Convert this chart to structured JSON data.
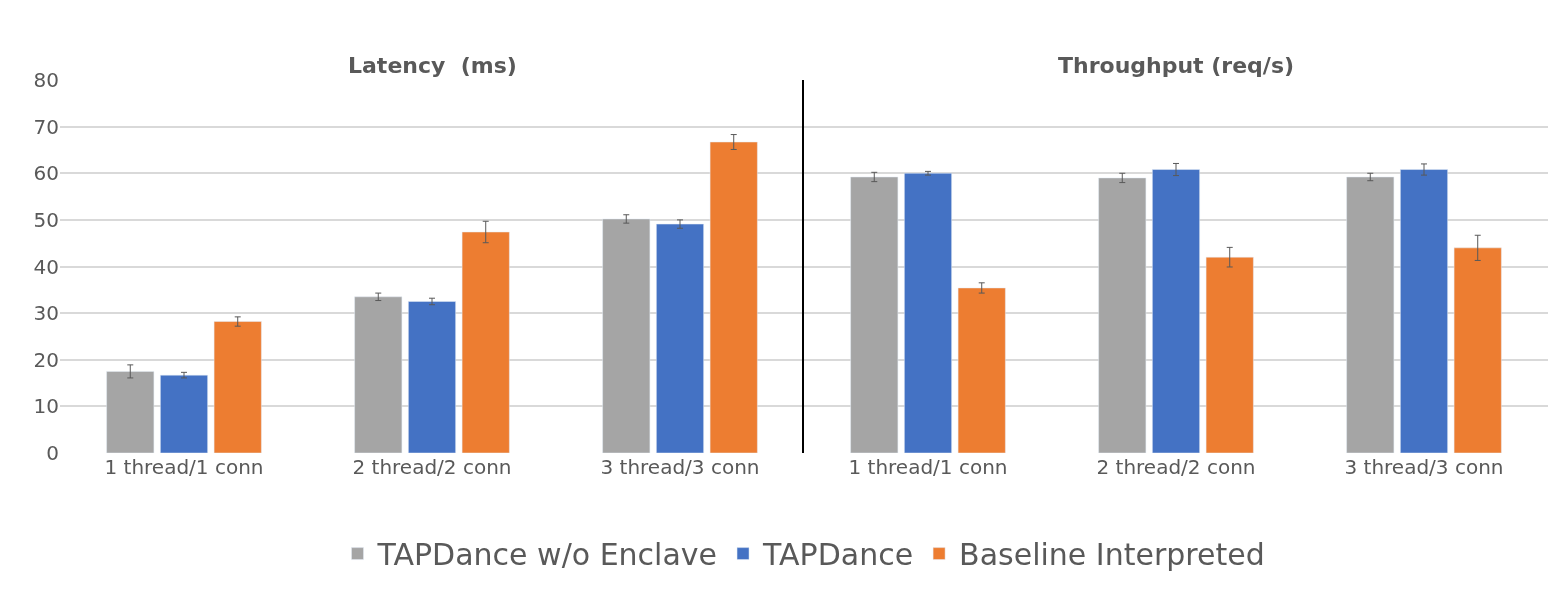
{
  "chart_data": [
    {
      "type": "bar",
      "title": "Latency  (ms)",
      "categories": [
        "1 thread/1 conn",
        "2 thread/2 conn",
        "3 thread/3 conn"
      ],
      "ylim": [
        0,
        80
      ],
      "yticks": [
        0,
        10,
        20,
        30,
        40,
        50,
        60,
        70,
        80
      ],
      "grid": "y",
      "legend": "bottom",
      "series": [
        {
          "name": "TAPDance w/o Enclave",
          "color": "#a5a5a5",
          "values": [
            17.5,
            33.5,
            50.2
          ],
          "errors": [
            1.4,
            0.8,
            0.9
          ]
        },
        {
          "name": "TAPDance",
          "color": "#4472c4",
          "values": [
            16.7,
            32.5,
            49.1
          ],
          "errors": [
            0.6,
            0.7,
            0.9
          ]
        },
        {
          "name": "Baseline Interpreted",
          "color": "#ed7d31",
          "values": [
            28.2,
            47.4,
            66.7
          ],
          "errors": [
            1.0,
            2.3,
            1.6
          ]
        }
      ]
    },
    {
      "type": "bar",
      "title": "Throughput (req/s)",
      "categories": [
        "1 thread/1 conn",
        "2 thread/2 conn",
        "3 thread/3 conn"
      ],
      "ylim": [
        0,
        80
      ],
      "yticks": [
        0,
        10,
        20,
        30,
        40,
        50,
        60,
        70,
        80
      ],
      "grid": "y",
      "legend": "bottom",
      "tick_labels": "x",
      "series": [
        {
          "name": "TAPDance w/o Enclave",
          "color": "#a5a5a5",
          "values": [
            59.2,
            59.0,
            59.2
          ],
          "errors": [
            1.0,
            1.0,
            0.8
          ]
        },
        {
          "name": "TAPDance",
          "color": "#4472c4",
          "values": [
            60.0,
            60.8,
            60.8
          ],
          "errors": [
            0.4,
            1.3,
            1.2
          ]
        },
        {
          "name": "Baseline Interpreted",
          "color": "#ed7d31",
          "values": [
            35.4,
            42.0,
            44.0
          ],
          "errors": [
            1.1,
            2.1,
            2.7
          ]
        }
      ]
    }
  ]
}
